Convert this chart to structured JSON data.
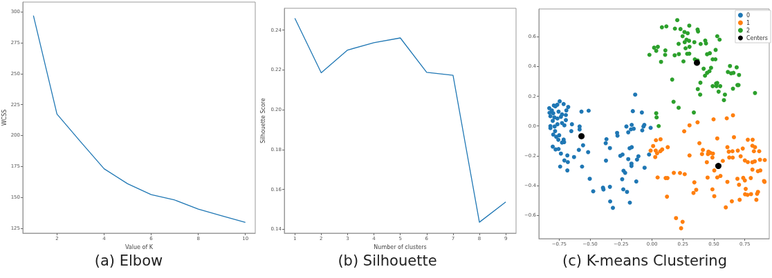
{
  "chart_data": [
    {
      "type": "line",
      "title": "(a) Elbow",
      "xlabel": "Value of K",
      "ylabel": "WCSS",
      "color": "#1f77b4",
      "marker": "none",
      "x": [
        1,
        2,
        3,
        4,
        5,
        6,
        7,
        8,
        9,
        10
      ],
      "values": [
        297,
        217.4,
        195,
        173.1,
        161,
        152.2,
        147.8,
        140.5,
        135,
        129.7
      ],
      "xlim": [
        0.55,
        10.42
      ],
      "ylim": [
        121,
        308
      ],
      "xticks": [
        2,
        4,
        6,
        8,
        10
      ],
      "yticks": [
        125,
        150,
        175,
        200,
        225,
        250,
        275,
        300
      ]
    },
    {
      "type": "line",
      "title": "(b) Silhouette",
      "xlabel": "Number of clusters",
      "ylabel": "Silhouette Score",
      "color": "#1f77b4",
      "marker": "none",
      "x": [
        1,
        2,
        3,
        4,
        5,
        6,
        7,
        8,
        9
      ],
      "values": [
        0.246,
        0.2186,
        0.23,
        0.2337,
        0.2361,
        0.2188,
        0.2173,
        0.1435,
        0.1537
      ],
      "xlim": [
        0.6,
        9.39
      ],
      "ylim": [
        0.138,
        0.251
      ],
      "xticks": [
        1,
        2,
        3,
        4,
        5,
        6,
        7,
        8,
        9
      ],
      "yticks": [
        0.14,
        0.16,
        0.18,
        {
          "value": 0.2,
          "label": "0.20"
        },
        0.22,
        0.24
      ]
    },
    {
      "type": "scatter",
      "title": "(c) K-means Clustering",
      "marker": "circle",
      "legend": "top right",
      "xlim": [
        -0.914,
        0.947
      ],
      "ylim": [
        -0.756,
        0.786
      ],
      "xticks": [
        {
          "value": -0.75,
          "label": "−0.75"
        },
        {
          "value": -0.5,
          "label": "−0.50"
        },
        {
          "value": -0.25,
          "label": "−0.25"
        },
        {
          "value": 0,
          "label": "0.00"
        },
        {
          "value": 0.25,
          "label": "0.25"
        },
        {
          "value": 0.5,
          "label": "0.50"
        },
        {
          "value": 0.75,
          "label": "0.75"
        }
      ],
      "yticks": [
        {
          "value": -0.6,
          "label": "−0.6"
        },
        {
          "value": -0.4,
          "label": "−0.4"
        },
        {
          "value": -0.2,
          "label": "−0.2"
        },
        {
          "value": 0,
          "label": "0.0"
        },
        0.2,
        0.4,
        0.6
      ],
      "series": [
        {
          "name": "0",
          "color": "#1f77b4",
          "x": [
            -0.136,
            -0.155,
            -0.082,
            -0.57,
            -0.512,
            -0.746,
            -0.714,
            -0.677,
            -0.83,
            -0.793,
            -0.765,
            -0.781,
            -0.809,
            -0.798,
            -0.755,
            -0.727,
            -0.692,
            -0.696,
            -0.828,
            -0.821,
            -0.789,
            -0.764,
            -0.736,
            -0.696,
            -0.802,
            -0.647,
            -0.821,
            -0.821,
            -0.787,
            -0.764,
            -0.727,
            -0.708,
            -0.652,
            -0.798,
            -0.774,
            -0.75,
            -0.783,
            -0.757,
            -0.714,
            -0.727,
            -0.71,
            -0.802,
            -0.779,
            -0.755,
            -0.736,
            -0.708,
            -0.68,
            -0.684,
            -0.742,
            -0.684,
            -0.63,
            -0.591,
            -0.585,
            -0.585,
            -0.557,
            -0.516,
            -0.565,
            -0.503,
            -0.475,
            -0.396,
            -0.392,
            -0.34,
            -0.338,
            -0.316,
            -0.368,
            -0.374,
            -0.34,
            -0.372,
            -0.282,
            -0.279,
            -0.256,
            -0.238,
            -0.207,
            -0.192,
            -0.164,
            -0.17,
            -0.148,
            -0.181,
            -0.164,
            -0.192,
            -0.166,
            -0.166,
            -0.121,
            -0.11,
            -0.06,
            -0.127,
            -0.23,
            -0.217,
            -0.241,
            -0.232,
            -0.202,
            -0.179,
            -0.079,
            -0.069,
            -0.062,
            -0.011,
            -0.024
          ],
          "values": [
            0.211,
            0.1,
            0.091,
            0.097,
            0.103,
            0.166,
            0.148,
            0.128,
            0.12,
            0.138,
            0.143,
            0.132,
            0.105,
            0.086,
            0.097,
            0.078,
            0.105,
            0.074,
            0.089,
            0.066,
            0.058,
            0.051,
            0.062,
            0.04,
            0.035,
            0.012,
            0,
            -0.014,
            -0.003,
            0.012,
            0.02,
            0.005,
            -0.034,
            -0.057,
            -0.072,
            -0.062,
            -0.034,
            -0.092,
            -0.091,
            -0.111,
            -0.108,
            -0.138,
            -0.157,
            -0.154,
            -0.185,
            -0.231,
            -0.242,
            -0.197,
            -0.272,
            -0.298,
            -0.208,
            -0.16,
            -0.023,
            -0.003,
            -0.129,
            -0.175,
            -0.272,
            -0.354,
            -0.438,
            -0.414,
            -0.426,
            -0.408,
            -0.506,
            -0.549,
            -0.088,
            -0.115,
            -0.148,
            -0.232,
            -0.046,
            -0.065,
            -0.2,
            -0.191,
            -0.003,
            -0.042,
            0.008,
            -0.022,
            -0.018,
            -0.149,
            -0.142,
            -0.222,
            -0.252,
            -0.268,
            -0.225,
            -0.203,
            -0.28,
            -0.372,
            -0.3,
            -0.314,
            -0.357,
            -0.425,
            -0.442,
            -0.514,
            -0.029,
            -0.003,
            0.008,
            -0.012,
            -0.191
          ]
        },
        {
          "name": "1",
          "color": "#ff7f0e",
          "x": [
            0.368,
            0.497,
            0.604,
            0.654,
            0.303,
            0.26,
            0.527,
            0.383,
            0.662,
            0.03,
            0.009,
            0.032,
            0.069,
            0.127,
            0.067,
            0.082,
            0.041,
            -0.011,
            0.026,
            0.303,
            0.411,
            0.404,
            0.456,
            0.471,
            0.492,
            0.452,
            0.488,
            0.443,
            0.572,
            0.609,
            0.62,
            0.65,
            0.624,
            0.652,
            0.693,
            0.733,
            0.716,
            0.75,
            0.774,
            0.774,
            0.813,
            0.811,
            0.832,
            0.823,
            0.866,
            0.811,
            0.83,
            0.872,
            0.911,
            0.856,
            0.875,
            0.811,
            0.798,
            0.737,
            0.69,
            0.703,
            0.75,
            0.905,
            0.909,
            0.757,
            0.772,
            0.752,
            0.8,
            0.856,
            0.849,
            0.843,
            0.708,
            0.645,
            0.596,
            0.609,
            0.553,
            0.527,
            0.503,
            0.503,
            0.488,
            0.449,
            0.357,
            0.342,
            0.335,
            0.176,
            0.226,
            0.264,
            0.045,
            0.11,
            0.125,
            0.121,
            0.194,
            0.247,
            0.235
          ],
          "values": [
            0.025,
            0.045,
            0.052,
            0.072,
            0.005,
            -0.035,
            -0.083,
            -0.115,
            -0.075,
            -0.165,
            -0.134,
            -0.095,
            -0.089,
            -0.142,
            -0.169,
            -0.157,
            -0.183,
            -0.165,
            -0.208,
            -0.197,
            -0.16,
            -0.188,
            -0.172,
            -0.18,
            -0.185,
            -0.188,
            -0.211,
            -0.243,
            -0.234,
            -0.142,
            -0.172,
            -0.169,
            -0.211,
            -0.212,
            -0.165,
            -0.151,
            -0.203,
            -0.231,
            -0.242,
            -0.092,
            -0.092,
            -0.132,
            -0.142,
            -0.169,
            -0.169,
            -0.243,
            -0.237,
            -0.226,
            -0.228,
            -0.303,
            -0.298,
            -0.292,
            -0.349,
            -0.348,
            -0.354,
            -0.394,
            -0.365,
            -0.369,
            -0.375,
            -0.422,
            -0.462,
            -0.458,
            -0.457,
            -0.442,
            -0.455,
            -0.495,
            -0.495,
            -0.505,
            -0.546,
            -0.375,
            -0.335,
            -0.345,
            -0.298,
            -0.471,
            -0.425,
            -0.346,
            -0.428,
            -0.378,
            -0.449,
            -0.314,
            -0.315,
            -0.323,
            -0.345,
            -0.349,
            -0.349,
            -0.474,
            -0.618,
            -0.643,
            -0.686
          ]
        },
        {
          "name": "2",
          "color": "#2ca02c",
          "x": [
            0.204,
            0.08,
            0.116,
            0.185,
            0.23,
            0.301,
            0.368,
            0.372,
            0.262,
            0.288,
            0.247,
            0.279,
            0.299,
            0.264,
            0.215,
            0.342,
            0.393,
            0.43,
            0.436,
            0.527,
            0.546,
            0.017,
            0.047,
            0.034,
            0.108,
            0.106,
            -0.021,
            0.073,
            0.183,
            0.217,
            0.271,
            0.303,
            0.284,
            0.301,
            0.254,
            0.346,
            0.368,
            0.467,
            0.445,
            0.514,
            0.49,
            0.512,
            0.417,
            0.477,
            0.445,
            0.428,
            0.464,
            0.63,
            0.684,
            0.613,
            0.639,
            0.658,
            0.703,
            0.163,
            0.391,
            0.37,
            0.389,
            0.49,
            0.518,
            0.527,
            0.521,
            0.551,
            0.538,
            0.589,
            0.581,
            0.654,
            0.69,
            0.699,
            0.832,
            0.174,
            0.215,
            0.034,
            0.037,
            0.338,
            0.054
          ],
          "values": [
            0.711,
            0.663,
            0.669,
            0.654,
            0.651,
            0.674,
            0.648,
            0.635,
            0.631,
            0.623,
            0.603,
            0.58,
            0.572,
            0.563,
            0.552,
            0.563,
            0.551,
            0.574,
            0.555,
            0.603,
            0.58,
            0.526,
            0.532,
            0.505,
            0.508,
            0.478,
            0.478,
            0.431,
            0.475,
            0.483,
            0.522,
            0.532,
            0.485,
            0.486,
            0.434,
            0.448,
            0.44,
            0.489,
            0.482,
            0.511,
            0.448,
            0.448,
            0.385,
            0.391,
            0.357,
            0.338,
            0.368,
            0.403,
            0.394,
            0.363,
            0.354,
            0.357,
            0.343,
            0.312,
            0.291,
            0.248,
            0.211,
            0.268,
            0.286,
            0.289,
            0.268,
            0.268,
            0.231,
            0.211,
            0.174,
            0.251,
            0.275,
            0.275,
            0.222,
            0.163,
            0.123,
            0.086,
            0.058,
            0.091,
            0
          ]
        },
        {
          "name": "Centers",
          "color": "#000000",
          "x": [
            -0.57,
            0.536,
            0.363
          ],
          "values": [
            -0.068,
            -0.268,
            0.425
          ]
        }
      ]
    }
  ]
}
